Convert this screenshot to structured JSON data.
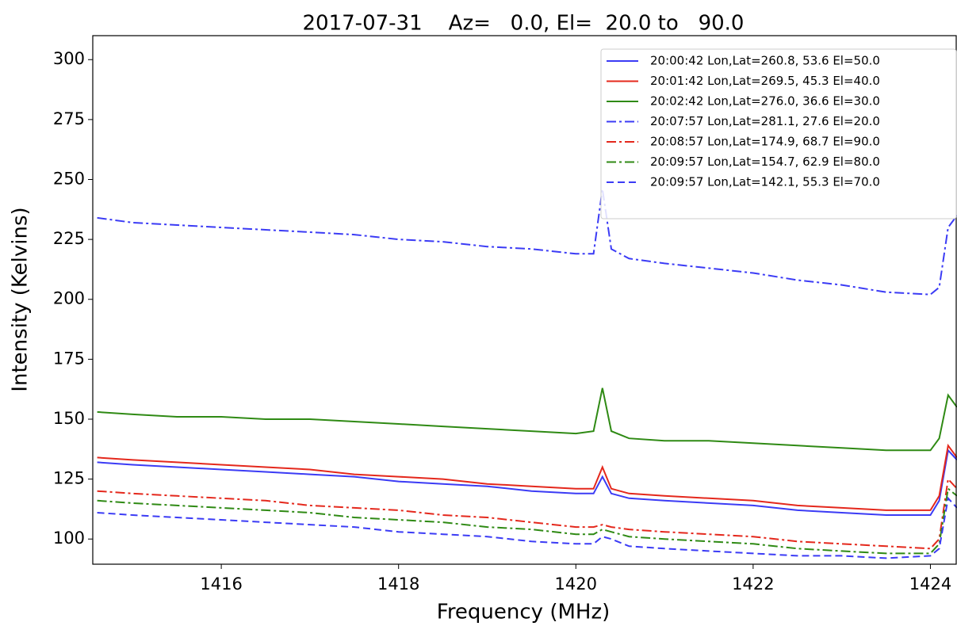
{
  "chart_data": {
    "type": "line",
    "title": "2017-07-31    Az=   0.0, El=  20.0 to   90.0",
    "x_label": "Frequency (MHz)",
    "y_label": "Intensity (Kelvins)",
    "x": [
      1414.6,
      1415,
      1415.5,
      1416,
      1416.5,
      1417,
      1417.5,
      1418,
      1418.5,
      1419,
      1419.5,
      1420,
      1420.2,
      1420.3,
      1420.4,
      1420.6,
      1421,
      1421.5,
      1422,
      1422.5,
      1423,
      1423.5,
      1424,
      1424.1,
      1424.2,
      1424.3
    ],
    "xlim": [
      1414.55,
      1424.3
    ],
    "xticks": [
      1416,
      1418,
      1420,
      1422,
      1424
    ],
    "ylim": [
      89.5,
      310
    ],
    "yticks": [
      100,
      125,
      150,
      175,
      200,
      225,
      250,
      275,
      300
    ],
    "legend_position": "upper right",
    "series": [
      {
        "name": "20:00:42 Lon,Lat=260.8, 53.6 El=50.0",
        "color": "#3b3bf5",
        "dash": "solid",
        "values": [
          132,
          131,
          130,
          129,
          128,
          127,
          126,
          124,
          123,
          122,
          120,
          119,
          119,
          126,
          119,
          117,
          116,
          115,
          114,
          112,
          111,
          110,
          110,
          116,
          137,
          133
        ]
      },
      {
        "name": "20:01:42 Lon,Lat=269.5, 45.3 El=40.0",
        "color": "#e4281c",
        "dash": "solid",
        "values": [
          134,
          133,
          132,
          131,
          130,
          129,
          127,
          126,
          125,
          123,
          122,
          121,
          121,
          130,
          121,
          119,
          118,
          117,
          116,
          114,
          113,
          112,
          112,
          118,
          139,
          134
        ]
      },
      {
        "name": "20:02:42 Lon,Lat=276.0, 36.6 El=30.0",
        "color": "#2f8a14",
        "dash": "solid",
        "values": [
          153,
          152,
          151,
          151,
          150,
          150,
          149,
          148,
          147,
          146,
          145,
          144,
          145,
          163,
          145,
          142,
          141,
          141,
          140,
          139,
          138,
          137,
          137,
          142,
          160,
          155
        ]
      },
      {
        "name": "20:07:57 Lon,Lat=281.1, 27.6 El=20.0",
        "color": "#3b3bf5",
        "dash": "dashdot",
        "values": [
          234,
          232,
          231,
          230,
          229,
          228,
          227,
          225,
          224,
          222,
          221,
          219,
          219,
          246,
          221,
          217,
          215,
          213,
          211,
          208,
          206,
          203,
          202,
          205,
          230,
          235
        ]
      },
      {
        "name": "20:08:57 Lon,Lat=174.9, 68.7 El=90.0",
        "color": "#e4281c",
        "dash": "dashdot",
        "values": [
          120,
          119,
          118,
          117,
          116,
          114,
          113,
          112,
          110,
          109,
          107,
          105,
          105,
          106,
          105,
          104,
          103,
          102,
          101,
          99,
          98,
          97,
          96,
          100,
          125,
          121
        ]
      },
      {
        "name": "20:09:57 Lon,Lat=154.7, 62.9 El=80.0",
        "color": "#2f8a14",
        "dash": "dashdot",
        "values": [
          116,
          115,
          114,
          113,
          112,
          111,
          109,
          108,
          107,
          105,
          104,
          102,
          102,
          104,
          103,
          101,
          100,
          99,
          98,
          96,
          95,
          94,
          94,
          98,
          121,
          118
        ]
      },
      {
        "name": "20:09:57 Lon,Lat=142.1, 55.3 El=70.0",
        "color": "#3b3bf5",
        "dash": "dashed",
        "values": [
          111,
          110,
          109,
          108,
          107,
          106,
          105,
          103,
          102,
          101,
          99,
          98,
          98,
          101,
          100,
          97,
          96,
          95,
          94,
          93,
          93,
          92,
          93,
          96,
          117,
          113
        ]
      }
    ]
  }
}
